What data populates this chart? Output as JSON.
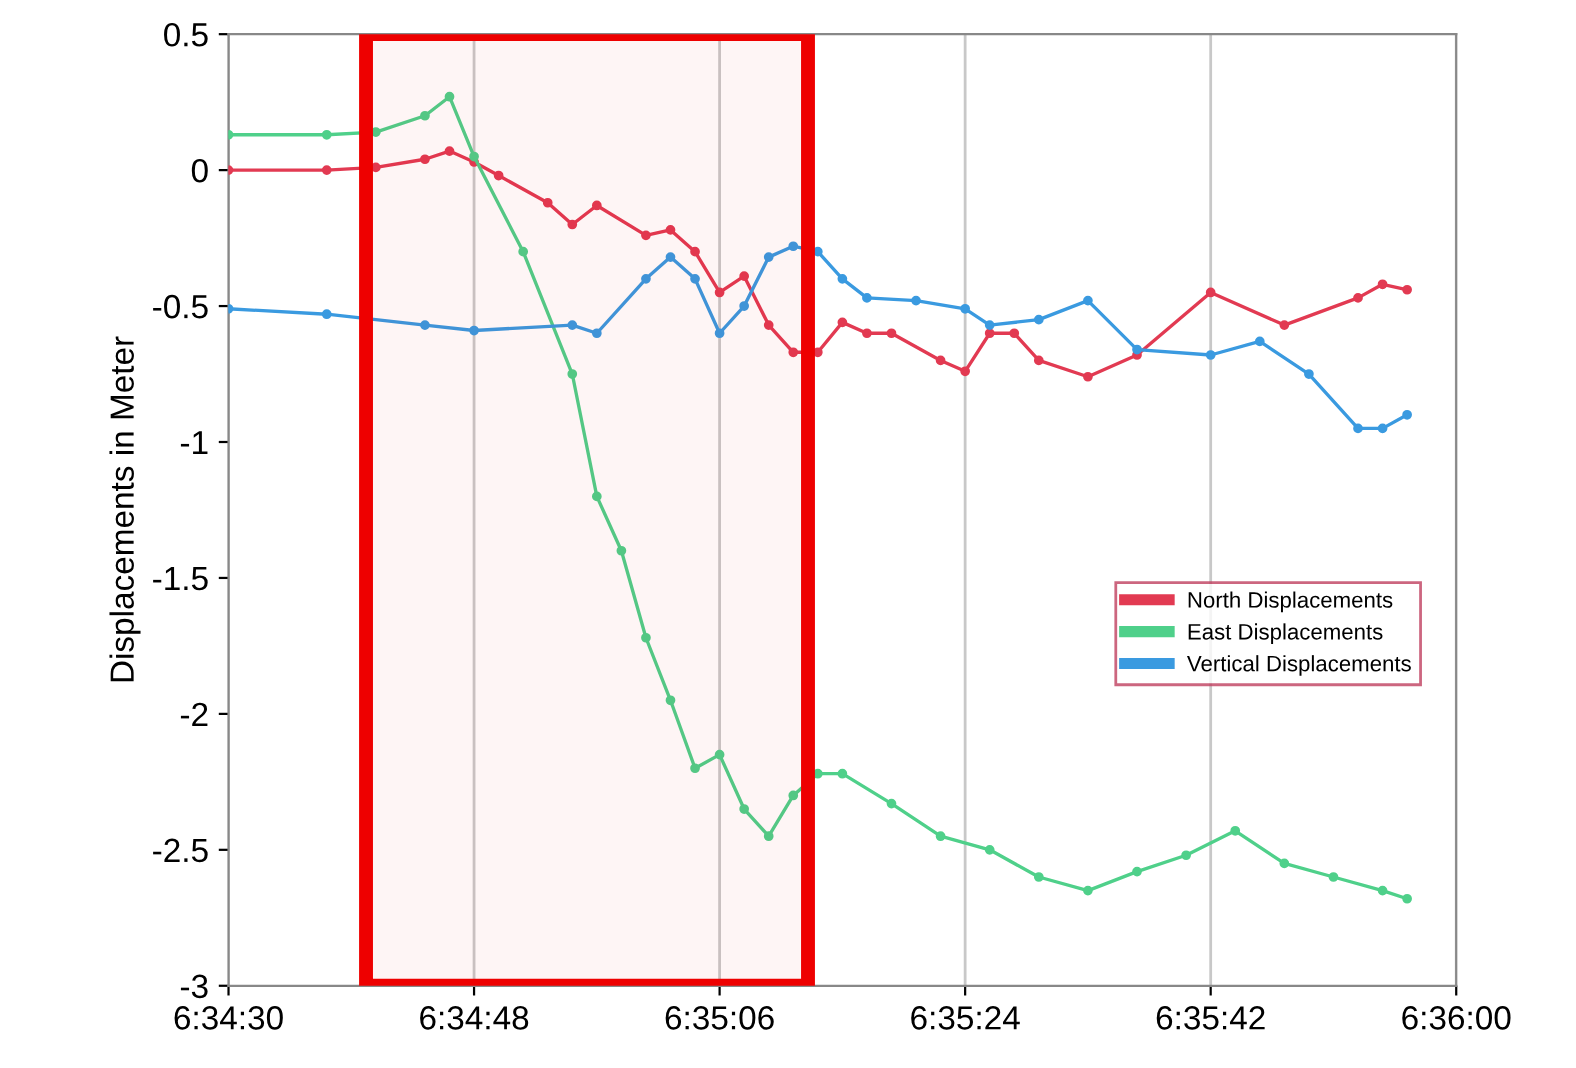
{
  "chart_data": {
    "type": "line",
    "ylabel": "Displacements in Meter",
    "xlim": [
      6.575,
      6.6
    ],
    "ylim": [
      -3,
      0.5
    ],
    "xticks": [
      {
        "value": 6.575,
        "label": "6:34:30"
      },
      {
        "value": 6.58,
        "label": "6:34:48"
      },
      {
        "value": 6.585,
        "label": "6:35:06"
      },
      {
        "value": 6.59,
        "label": "6:35:24"
      },
      {
        "value": 6.595,
        "label": "6:35:42"
      },
      {
        "value": 6.6,
        "label": "6:36:00"
      }
    ],
    "yticks": [
      -3,
      -2.5,
      -2,
      -1.5,
      -1,
      -0.5,
      0,
      0.5
    ],
    "grid": "x",
    "legend": "center right",
    "marker": "circle",
    "line_style": "solid",
    "bands": [
      {
        "axis": "x",
        "from": 6.5778,
        "to": 6.5868,
        "label": null,
        "color": "#ee0000"
      }
    ],
    "series": [
      {
        "name": "North Displacements",
        "color": "#e23a52",
        "x": [
          6.575,
          6.577,
          6.578,
          6.579,
          6.5795,
          6.58,
          6.5805,
          6.5815,
          6.582,
          6.5825,
          6.5835,
          6.584,
          6.5845,
          6.585,
          6.5855,
          6.586,
          6.5865,
          6.587,
          6.5875,
          6.588,
          6.5885,
          6.5895,
          6.59,
          6.5905,
          6.591,
          6.5915,
          6.5925,
          6.5935,
          6.595,
          6.5965,
          6.598,
          6.5985,
          6.599
        ],
        "values": [
          0,
          0,
          0.01,
          0.04,
          0.07,
          0.03,
          -0.02,
          -0.12,
          -0.2,
          -0.13,
          -0.24,
          -0.22,
          -0.3,
          -0.45,
          -0.39,
          -0.57,
          -0.67,
          -0.67,
          -0.56,
          -0.6,
          -0.6,
          -0.7,
          -0.74,
          -0.6,
          -0.6,
          -0.7,
          -0.76,
          -0.68,
          -0.45,
          -0.57,
          -0.47,
          -0.42,
          -0.44
        ]
      },
      {
        "name": "East Displacements",
        "color": "#4fd08a",
        "x": [
          6.575,
          6.577,
          6.578,
          6.579,
          6.5795,
          6.58,
          6.581,
          6.582,
          6.5825,
          6.583,
          6.5835,
          6.584,
          6.5845,
          6.585,
          6.5855,
          6.586,
          6.5865,
          6.587,
          6.5875,
          6.5885,
          6.5895,
          6.5905,
          6.5915,
          6.5925,
          6.5935,
          6.5945,
          6.5955,
          6.5965,
          6.5975,
          6.5985,
          6.599
        ],
        "values": [
          0.13,
          0.13,
          0.14,
          0.2,
          0.27,
          0.05,
          -0.3,
          -0.75,
          -1.2,
          -1.4,
          -1.72,
          -1.95,
          -2.2,
          -2.15,
          -2.35,
          -2.45,
          -2.3,
          -2.22,
          -2.22,
          -2.33,
          -2.45,
          -2.5,
          -2.6,
          -2.65,
          -2.58,
          -2.52,
          -2.43,
          -2.55,
          -2.6,
          -2.65,
          -2.68
        ]
      },
      {
        "name": "Vertical Displacements",
        "color": "#3a9ae0",
        "x": [
          6.575,
          6.577,
          6.579,
          6.58,
          6.582,
          6.5825,
          6.5835,
          6.584,
          6.5845,
          6.585,
          6.5855,
          6.586,
          6.5865,
          6.587,
          6.5875,
          6.588,
          6.589,
          6.59,
          6.5905,
          6.5915,
          6.5925,
          6.5935,
          6.595,
          6.596,
          6.597,
          6.598,
          6.5985,
          6.599
        ],
        "values": [
          -0.51,
          -0.53,
          -0.57,
          -0.59,
          -0.57,
          -0.6,
          -0.4,
          -0.32,
          -0.4,
          -0.6,
          -0.5,
          -0.32,
          -0.28,
          -0.3,
          -0.4,
          -0.47,
          -0.48,
          -0.51,
          -0.57,
          -0.55,
          -0.48,
          -0.66,
          -0.68,
          -0.63,
          -0.75,
          -0.95,
          -0.95,
          -0.9
        ]
      }
    ]
  }
}
